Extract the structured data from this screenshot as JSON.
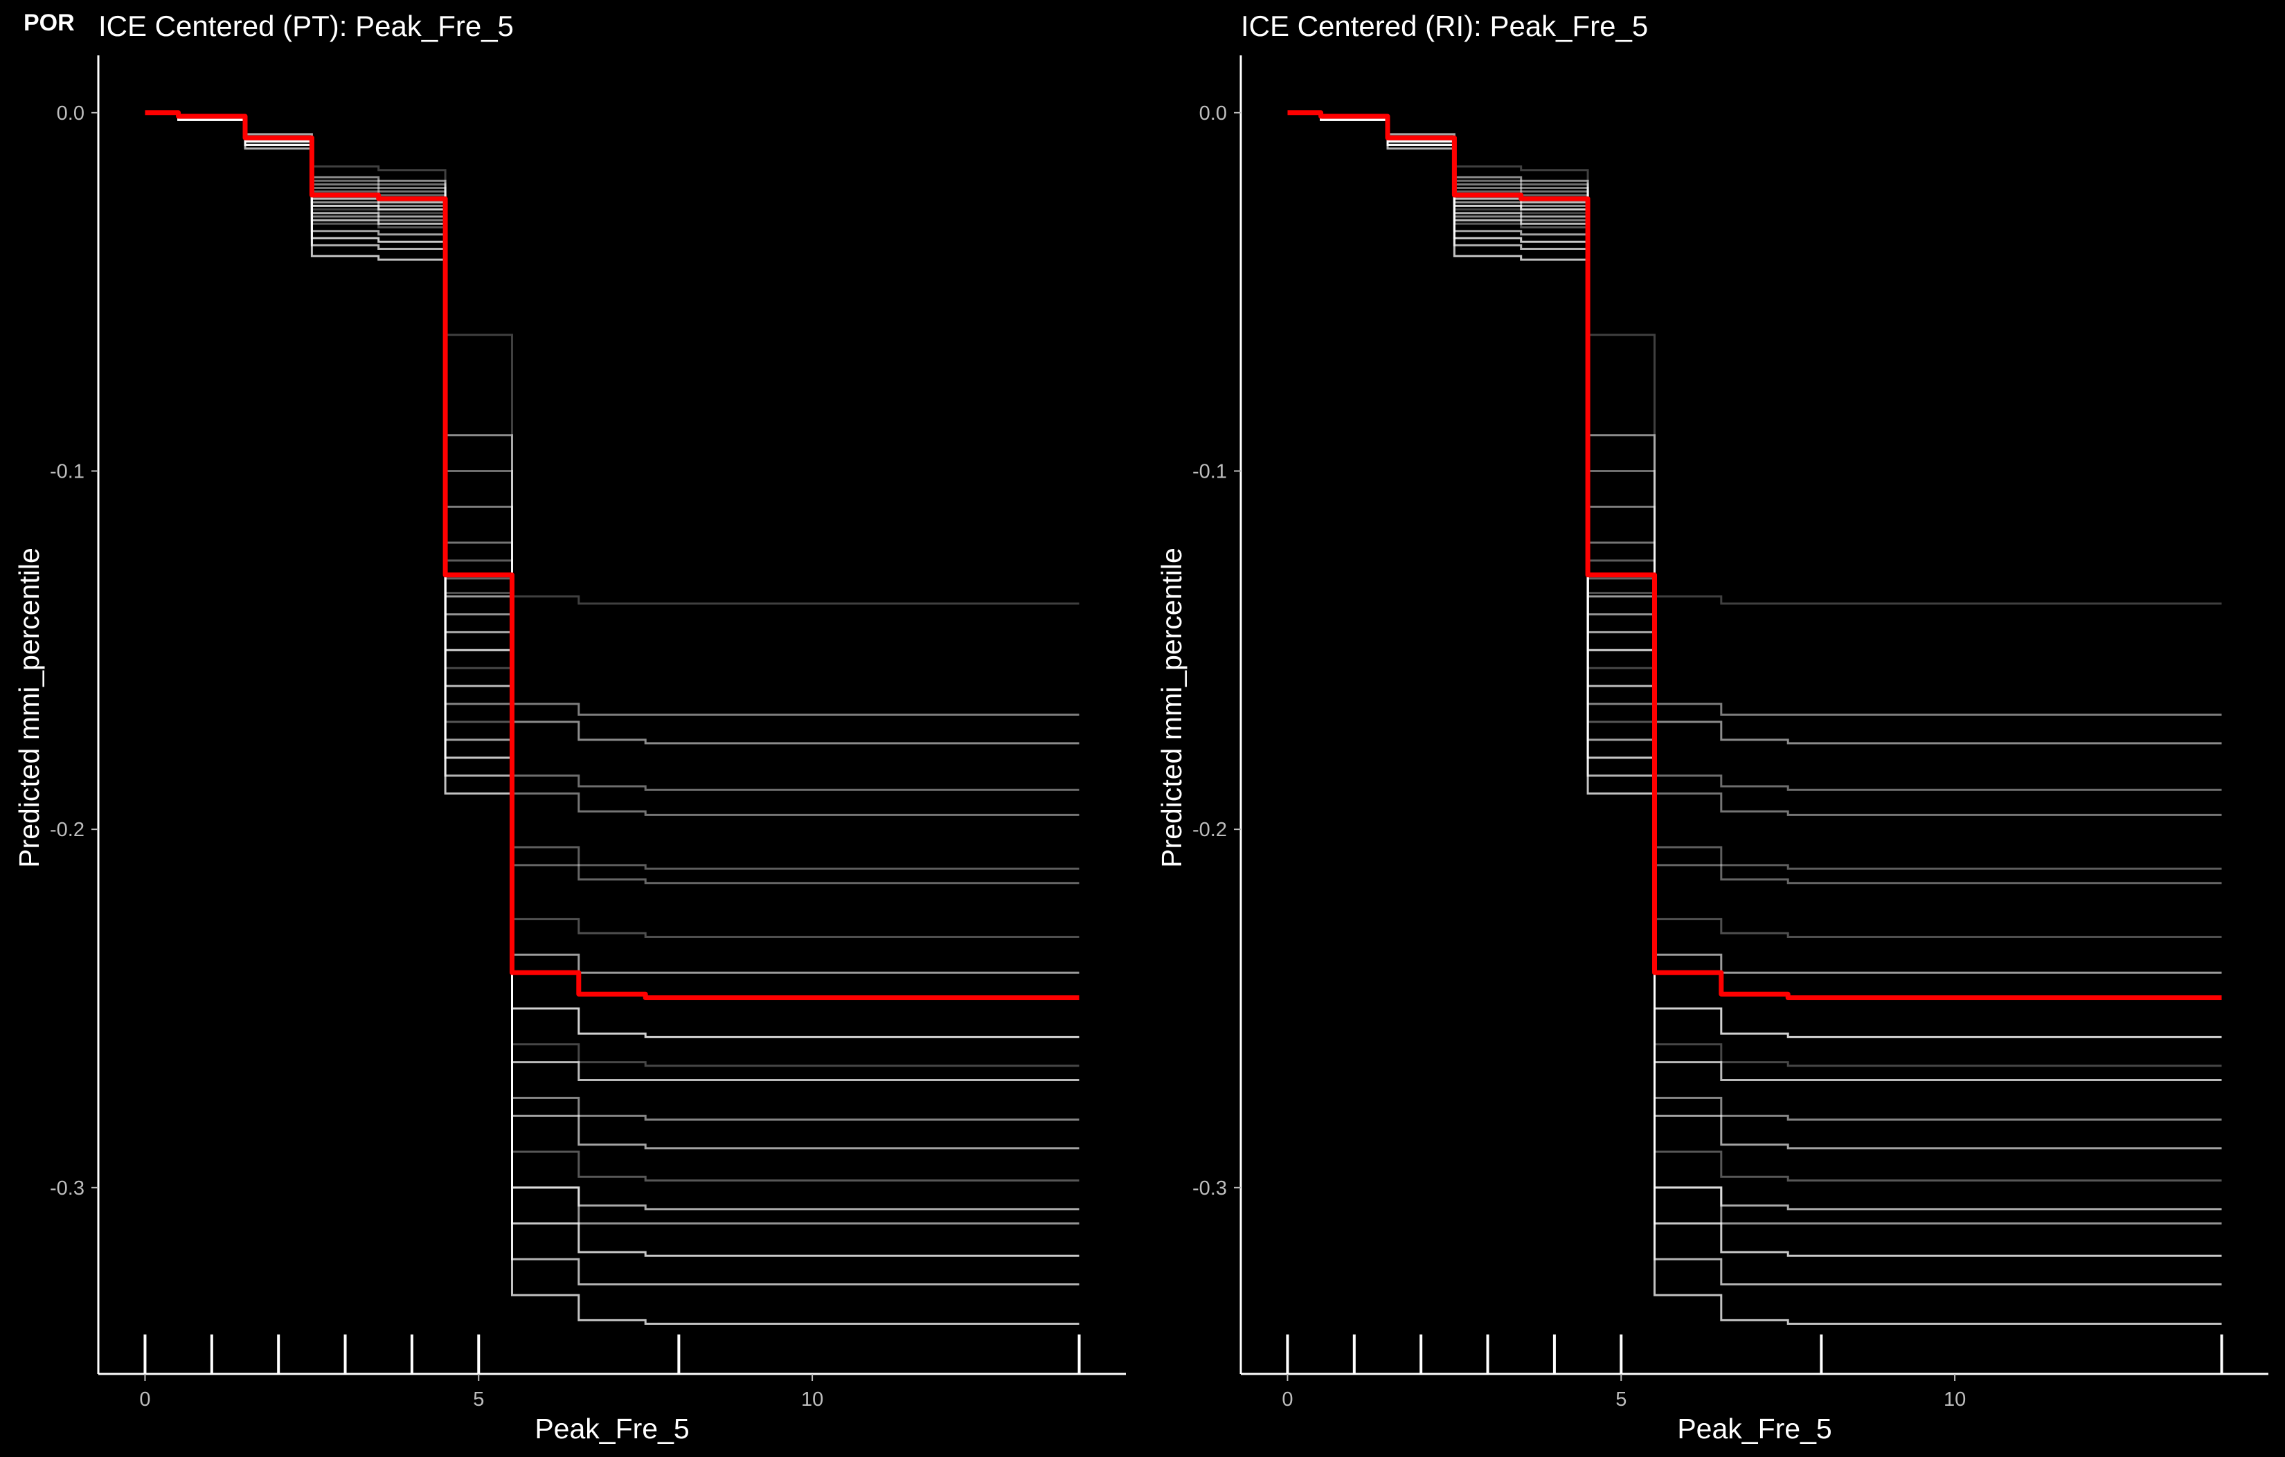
{
  "corner_tag": "POR",
  "colors": {
    "background": "#000000",
    "axis": "#ffffff",
    "ice_lines": "#ffffff",
    "average_line": "#ff0000",
    "tick_labels": "#bdbdbd"
  },
  "chart_data": [
    {
      "type": "line",
      "title": "ICE Centered (PT): Peak_Fre_5",
      "xlabel": "Peak_Fre_5",
      "ylabel": "Predicted mmi_percentile",
      "x_ticks": [
        {
          "value": 0,
          "label": "0"
        },
        {
          "value": 5,
          "label": "5"
        },
        {
          "value": 10,
          "label": "10"
        }
      ],
      "y_ticks": [
        {
          "value": 0,
          "label": "0.0"
        },
        {
          "value": -0.1,
          "label": "-0.1"
        },
        {
          "value": -0.2,
          "label": "-0.2"
        },
        {
          "value": -0.3,
          "label": "-0.3"
        }
      ],
      "xlim": [
        -0.7,
        14.7
      ],
      "ylim": [
        -0.352,
        0.016
      ],
      "rug_x": [
        0,
        1,
        2,
        3,
        4,
        5,
        8,
        14
      ],
      "grid": false,
      "legend": "none",
      "average_series": {
        "x": [
          0,
          0.5,
          1.5,
          2.5,
          3.5,
          4.5,
          5.5,
          6.5,
          7.5,
          14
        ],
        "values": [
          0.0,
          -0.001,
          -0.007,
          -0.023,
          -0.024,
          -0.129,
          -0.24,
          -0.246,
          -0.247,
          -0.247
        ]
      },
      "ice_series": [
        {
          "values": [
            0,
            -0.001,
            -0.006,
            -0.015,
            -0.016,
            -0.062,
            -0.135,
            -0.137,
            -0.137,
            -0.137
          ]
        },
        {
          "values": [
            0,
            -0.002,
            -0.009,
            -0.04,
            -0.041,
            -0.19,
            -0.33,
            -0.337,
            -0.338,
            -0.338
          ]
        },
        {
          "values": [
            0,
            -0.001,
            -0.008,
            -0.028,
            -0.029,
            -0.145,
            -0.3,
            -0.305,
            -0.306,
            -0.306
          ]
        },
        {
          "values": [
            0,
            -0.001,
            -0.007,
            -0.025,
            -0.026,
            -0.14,
            -0.3,
            -0.31,
            -0.31,
            -0.31
          ]
        },
        {
          "values": [
            0,
            -0.001,
            -0.007,
            -0.02,
            -0.021,
            -0.11,
            -0.165,
            -0.168,
            -0.168,
            -0.168
          ]
        },
        {
          "values": [
            0,
            -0.001,
            -0.007,
            -0.022,
            -0.023,
            -0.13,
            -0.21,
            -0.214,
            -0.215,
            -0.215
          ]
        },
        {
          "values": [
            0,
            -0.001,
            -0.007,
            -0.024,
            -0.025,
            -0.134,
            -0.225,
            -0.229,
            -0.23,
            -0.23
          ]
        },
        {
          "values": [
            0,
            -0.001,
            -0.007,
            -0.026,
            -0.027,
            -0.15,
            -0.25,
            -0.257,
            -0.258,
            -0.258
          ]
        },
        {
          "values": [
            0,
            -0.001,
            -0.008,
            -0.03,
            -0.031,
            -0.16,
            -0.265,
            -0.27,
            -0.27,
            -0.27
          ]
        },
        {
          "values": [
            0,
            -0.002,
            -0.009,
            -0.033,
            -0.034,
            -0.175,
            -0.28,
            -0.288,
            -0.289,
            -0.289
          ]
        },
        {
          "values": [
            0,
            -0.001,
            -0.006,
            -0.018,
            -0.019,
            -0.09,
            -0.17,
            -0.175,
            -0.176,
            -0.176
          ]
        },
        {
          "values": [
            0,
            -0.001,
            -0.007,
            -0.021,
            -0.022,
            -0.12,
            -0.19,
            -0.195,
            -0.196,
            -0.196
          ]
        },
        {
          "values": [
            0,
            -0.001,
            -0.007,
            -0.023,
            -0.024,
            -0.125,
            -0.205,
            -0.21,
            -0.211,
            -0.211
          ]
        },
        {
          "values": [
            0,
            -0.001,
            -0.008,
            -0.027,
            -0.028,
            -0.155,
            -0.26,
            -0.265,
            -0.266,
            -0.266
          ]
        },
        {
          "values": [
            0,
            -0.002,
            -0.009,
            -0.035,
            -0.036,
            -0.18,
            -0.31,
            -0.318,
            -0.319,
            -0.319
          ]
        },
        {
          "values": [
            0,
            -0.002,
            -0.01,
            -0.037,
            -0.038,
            -0.185,
            -0.32,
            -0.327,
            -0.327,
            -0.327
          ]
        },
        {
          "values": [
            0,
            -0.001,
            -0.007,
            -0.024,
            -0.025,
            -0.135,
            -0.235,
            -0.24,
            -0.24,
            -0.24
          ]
        },
        {
          "values": [
            0,
            -0.001,
            -0.008,
            -0.029,
            -0.03,
            -0.165,
            -0.275,
            -0.28,
            -0.281,
            -0.281
          ]
        },
        {
          "values": [
            0,
            -0.001,
            -0.007,
            -0.019,
            -0.02,
            -0.1,
            -0.185,
            -0.188,
            -0.189,
            -0.189
          ]
        },
        {
          "values": [
            0,
            -0.001,
            -0.008,
            -0.031,
            -0.032,
            -0.17,
            -0.29,
            -0.297,
            -0.298,
            -0.298
          ]
        }
      ]
    },
    {
      "type": "line",
      "title": "ICE Centered (RI): Peak_Fre_5",
      "xlabel": "Peak_Fre_5",
      "ylabel": "Predicted mmi_percentile",
      "x_ticks": [
        {
          "value": 0,
          "label": "0"
        },
        {
          "value": 5,
          "label": "5"
        },
        {
          "value": 10,
          "label": "10"
        }
      ],
      "y_ticks": [
        {
          "value": 0,
          "label": "0.0"
        },
        {
          "value": -0.1,
          "label": "-0.1"
        },
        {
          "value": -0.2,
          "label": "-0.2"
        },
        {
          "value": -0.3,
          "label": "-0.3"
        }
      ],
      "xlim": [
        -0.7,
        14.7
      ],
      "ylim": [
        -0.352,
        0.016
      ],
      "rug_x": [
        0,
        1,
        2,
        3,
        4,
        5,
        8,
        14
      ],
      "grid": false,
      "legend": "none",
      "average_series": {
        "x": [
          0,
          0.5,
          1.5,
          2.5,
          3.5,
          4.5,
          5.5,
          6.5,
          7.5,
          14
        ],
        "values": [
          0.0,
          -0.001,
          -0.007,
          -0.023,
          -0.024,
          -0.129,
          -0.24,
          -0.246,
          -0.247,
          -0.247
        ]
      },
      "ice_series": [
        {
          "values": [
            0,
            -0.001,
            -0.006,
            -0.015,
            -0.016,
            -0.062,
            -0.135,
            -0.137,
            -0.137,
            -0.137
          ]
        },
        {
          "values": [
            0,
            -0.002,
            -0.009,
            -0.04,
            -0.041,
            -0.19,
            -0.33,
            -0.337,
            -0.338,
            -0.338
          ]
        },
        {
          "values": [
            0,
            -0.001,
            -0.008,
            -0.028,
            -0.029,
            -0.145,
            -0.3,
            -0.305,
            -0.306,
            -0.306
          ]
        },
        {
          "values": [
            0,
            -0.001,
            -0.007,
            -0.025,
            -0.026,
            -0.14,
            -0.3,
            -0.31,
            -0.31,
            -0.31
          ]
        },
        {
          "values": [
            0,
            -0.001,
            -0.007,
            -0.02,
            -0.021,
            -0.11,
            -0.165,
            -0.168,
            -0.168,
            -0.168
          ]
        },
        {
          "values": [
            0,
            -0.001,
            -0.007,
            -0.022,
            -0.023,
            -0.13,
            -0.21,
            -0.214,
            -0.215,
            -0.215
          ]
        },
        {
          "values": [
            0,
            -0.001,
            -0.007,
            -0.024,
            -0.025,
            -0.134,
            -0.225,
            -0.229,
            -0.23,
            -0.23
          ]
        },
        {
          "values": [
            0,
            -0.001,
            -0.007,
            -0.026,
            -0.027,
            -0.15,
            -0.25,
            -0.257,
            -0.258,
            -0.258
          ]
        },
        {
          "values": [
            0,
            -0.001,
            -0.008,
            -0.03,
            -0.031,
            -0.16,
            -0.265,
            -0.27,
            -0.27,
            -0.27
          ]
        },
        {
          "values": [
            0,
            -0.002,
            -0.009,
            -0.033,
            -0.034,
            -0.175,
            -0.28,
            -0.288,
            -0.289,
            -0.289
          ]
        },
        {
          "values": [
            0,
            -0.001,
            -0.006,
            -0.018,
            -0.019,
            -0.09,
            -0.17,
            -0.175,
            -0.176,
            -0.176
          ]
        },
        {
          "values": [
            0,
            -0.001,
            -0.007,
            -0.021,
            -0.022,
            -0.12,
            -0.19,
            -0.195,
            -0.196,
            -0.196
          ]
        },
        {
          "values": [
            0,
            -0.001,
            -0.007,
            -0.023,
            -0.024,
            -0.125,
            -0.205,
            -0.21,
            -0.211,
            -0.211
          ]
        },
        {
          "values": [
            0,
            -0.001,
            -0.008,
            -0.027,
            -0.028,
            -0.155,
            -0.26,
            -0.265,
            -0.266,
            -0.266
          ]
        },
        {
          "values": [
            0,
            -0.002,
            -0.009,
            -0.035,
            -0.036,
            -0.18,
            -0.31,
            -0.318,
            -0.319,
            -0.319
          ]
        },
        {
          "values": [
            0,
            -0.002,
            -0.01,
            -0.037,
            -0.038,
            -0.185,
            -0.32,
            -0.327,
            -0.327,
            -0.327
          ]
        },
        {
          "values": [
            0,
            -0.001,
            -0.007,
            -0.024,
            -0.025,
            -0.135,
            -0.235,
            -0.24,
            -0.24,
            -0.24
          ]
        },
        {
          "values": [
            0,
            -0.001,
            -0.008,
            -0.029,
            -0.03,
            -0.165,
            -0.275,
            -0.28,
            -0.281,
            -0.281
          ]
        },
        {
          "values": [
            0,
            -0.001,
            -0.007,
            -0.019,
            -0.02,
            -0.1,
            -0.185,
            -0.188,
            -0.189,
            -0.189
          ]
        },
        {
          "values": [
            0,
            -0.001,
            -0.008,
            -0.031,
            -0.032,
            -0.17,
            -0.29,
            -0.297,
            -0.298,
            -0.298
          ]
        }
      ]
    }
  ]
}
